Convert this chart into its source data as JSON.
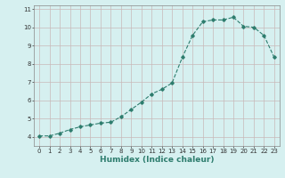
{
  "x": [
    0,
    1,
    2,
    3,
    4,
    5,
    6,
    7,
    8,
    9,
    10,
    11,
    12,
    13,
    14,
    15,
    16,
    17,
    18,
    19,
    20,
    21,
    22,
    23
  ],
  "y": [
    4.05,
    4.05,
    4.2,
    4.4,
    4.55,
    4.65,
    4.75,
    4.8,
    5.1,
    5.5,
    5.9,
    6.35,
    6.6,
    6.95,
    8.35,
    9.55,
    10.3,
    10.4,
    10.4,
    10.55,
    10.05,
    10.0,
    9.55,
    8.35
  ],
  "line_color": "#2e7d6e",
  "marker": "D",
  "markersize": 1.8,
  "linewidth": 0.8,
  "xlabel": "Humidex (Indice chaleur)",
  "xlabel_fontsize": 6.5,
  "background_color": "#d6f0f0",
  "grid_color": "#c8b8b8",
  "ylim": [
    3.5,
    11.2
  ],
  "xlim": [
    -0.5,
    23.5
  ],
  "yticks": [
    4,
    5,
    6,
    7,
    8,
    9,
    10,
    11
  ],
  "xticks": [
    0,
    1,
    2,
    3,
    4,
    5,
    6,
    7,
    8,
    9,
    10,
    11,
    12,
    13,
    14,
    15,
    16,
    17,
    18,
    19,
    20,
    21,
    22,
    23
  ],
  "tick_fontsize": 5,
  "fig_bg_color": "#d6f0f0"
}
